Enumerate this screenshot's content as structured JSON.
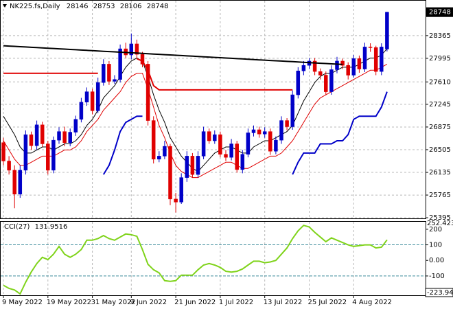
{
  "chart_data": [
    {
      "type": "candlestick",
      "title": "NK225.fs,Daily",
      "categories": [
        "9 May 2022",
        null,
        null,
        null,
        null,
        null,
        null,
        null,
        "19 May 2022",
        null,
        null,
        null,
        null,
        null,
        null,
        null,
        "31 May 2022",
        null,
        null,
        null,
        null,
        null,
        null,
        "9 Jun 2022",
        null,
        null,
        null,
        null,
        null,
        null,
        null,
        "21 Jun 2022",
        null,
        null,
        null,
        null,
        null,
        null,
        null,
        "1 Jul 2022",
        null,
        null,
        null,
        null,
        null,
        null,
        null,
        "13 Jul 2022",
        null,
        null,
        null,
        null,
        null,
        null,
        null,
        "25 Jul 2022",
        null,
        null,
        null,
        null,
        null,
        null,
        null,
        "4 Aug 2022",
        null,
        null,
        null,
        null,
        null,
        null
      ],
      "open": [
        26620,
        26320,
        26170,
        25780,
        26170,
        26750,
        26570,
        26910,
        26600,
        26170,
        26660,
        26800,
        26620,
        26790,
        27000,
        27280,
        27450,
        27140,
        27600,
        27900,
        27620,
        27650,
        28150,
        28050,
        28230,
        28060,
        27900,
        26980,
        26350,
        26400,
        26560,
        25700,
        25650,
        26050,
        26400,
        26100,
        26400,
        26800,
        26650,
        26750,
        26430,
        26380,
        26600,
        26180,
        26430,
        26780,
        26830,
        26760,
        26800,
        26480,
        26660,
        26980,
        26880,
        27400,
        27790,
        27880,
        27950,
        27780,
        27720,
        27450,
        27810,
        27950,
        27880,
        27720,
        27990,
        27820,
        28180,
        28170,
        27780,
        28146
      ],
      "high": [
        26700,
        26400,
        26250,
        26250,
        26820,
        26800,
        26980,
        26960,
        26650,
        26720,
        26870,
        26880,
        26850,
        27060,
        27350,
        27520,
        27500,
        27680,
        27980,
        27950,
        27720,
        28220,
        28250,
        28400,
        28300,
        28100,
        27950,
        27050,
        26480,
        26650,
        26600,
        25800,
        26120,
        26480,
        26450,
        26480,
        26880,
        26850,
        26820,
        26800,
        26500,
        26680,
        26650,
        26500,
        26850,
        26900,
        26880,
        26870,
        26850,
        26720,
        27050,
        27020,
        27470,
        27850,
        27950,
        28000,
        28000,
        27830,
        27780,
        27880,
        28020,
        27990,
        27930,
        28050,
        28040,
        28250,
        28240,
        28200,
        28240,
        28753
      ],
      "low": [
        26250,
        26100,
        25550,
        25720,
        26100,
        26500,
        26500,
        26550,
        26100,
        26120,
        26600,
        26560,
        26560,
        26730,
        26950,
        27220,
        27080,
        27100,
        27550,
        27560,
        27580,
        27600,
        28000,
        27980,
        28000,
        27850,
        26900,
        26280,
        26300,
        26350,
        25600,
        25480,
        25620,
        25980,
        26050,
        26050,
        26350,
        26600,
        26600,
        26380,
        26320,
        26330,
        26130,
        26120,
        26380,
        26720,
        26700,
        26700,
        26420,
        26430,
        26600,
        26820,
        26830,
        27340,
        27720,
        27820,
        27720,
        27650,
        27400,
        27400,
        27750,
        27820,
        27650,
        27680,
        27760,
        27770,
        28100,
        27720,
        27720,
        28106
      ],
      "close": [
        26320,
        26170,
        25780,
        26170,
        26750,
        26570,
        26910,
        26600,
        26170,
        26660,
        26800,
        26620,
        26790,
        27000,
        27280,
        27450,
        27140,
        27600,
        27900,
        27620,
        27650,
        28150,
        28050,
        28230,
        28060,
        27900,
        26980,
        26350,
        26400,
        26560,
        25700,
        25650,
        26050,
        26400,
        26100,
        26400,
        26800,
        26650,
        26750,
        26430,
        26380,
        26600,
        26180,
        26430,
        26780,
        26830,
        26760,
        26800,
        26480,
        26660,
        26980,
        26880,
        27400,
        27790,
        27880,
        27950,
        27780,
        27720,
        27450,
        27810,
        27950,
        27880,
        27720,
        27990,
        27820,
        28180,
        28170,
        27780,
        28180,
        28748
      ],
      "up_color": "#0000c8",
      "down_color": "#e00000",
      "lines": [
        {
          "color": "#000000",
          "width": 2,
          "values": [
            28200,
            28195,
            28190,
            28185,
            28180,
            28175,
            28170,
            28165,
            28160,
            28155,
            28150,
            28145,
            28140,
            28135,
            28130,
            28125,
            28120,
            28115,
            28110,
            28105,
            28100,
            28095,
            28090,
            28085,
            28080,
            28075,
            28070,
            28065,
            28060,
            28055,
            28050,
            28045,
            28040,
            28035,
            28030,
            28025,
            28020,
            28015,
            28010,
            28005,
            28000,
            27995,
            27990,
            27985,
            27980,
            27975,
            27970,
            27965,
            27960,
            27955,
            27950,
            27945,
            27940,
            27935,
            27930,
            27925,
            27920,
            27915,
            27910,
            27905,
            27900,
            27895,
            null,
            null,
            null,
            null,
            null,
            null,
            null,
            null
          ]
        },
        {
          "color": "#000000",
          "width": 1,
          "values": [
            27050,
            26900,
            26750,
            26550,
            26450,
            26450,
            26500,
            26550,
            26550,
            26500,
            26550,
            26600,
            26600,
            26650,
            26750,
            26900,
            27000,
            27150,
            27350,
            27450,
            27550,
            27700,
            27850,
            27950,
            28000,
            27950,
            27700,
            27400,
            27150,
            26950,
            26700,
            26550,
            26400,
            26300,
            26200,
            26150,
            26250,
            26350,
            26450,
            26500,
            26550,
            26550,
            26500,
            26450,
            26450,
            26550,
            26600,
            26650,
            26650,
            26700,
            26750,
            26800,
            26900,
            27100,
            27300,
            27450,
            27600,
            27700,
            27750,
            27750,
            27800,
            27850,
            27850,
            27850,
            27900,
            27950,
            28000,
            28000,
            28050,
            28150
          ]
        },
        {
          "color": "#e00000",
          "width": 1,
          "values": [
            26650,
            26500,
            26350,
            26250,
            26250,
            26300,
            26350,
            26400,
            26400,
            26400,
            26450,
            26500,
            26500,
            26550,
            26650,
            26800,
            26900,
            27000,
            27150,
            27250,
            27350,
            27450,
            27600,
            27700,
            27750,
            27750,
            27500,
            27200,
            26900,
            26700,
            26450,
            26250,
            26150,
            26100,
            26050,
            26050,
            26100,
            26150,
            26200,
            26250,
            26300,
            26300,
            26250,
            26200,
            26200,
            26250,
            26300,
            26350,
            26400,
            26400,
            26450,
            26550,
            26650,
            26800,
            26950,
            27100,
            27250,
            27350,
            27400,
            27450,
            27500,
            27550,
            27600,
            27650,
            27700,
            27750,
            27800,
            27800,
            27850,
            27900
          ]
        },
        {
          "color": "#0000c8",
          "width": 2,
          "values": [
            null,
            null,
            null,
            null,
            null,
            null,
            null,
            null,
            null,
            null,
            null,
            null,
            null,
            null,
            null,
            null,
            null,
            null,
            26100,
            26250,
            26500,
            26800,
            26950,
            27000,
            27050,
            27050,
            null,
            null,
            null,
            null,
            null,
            null,
            null,
            null,
            null,
            null,
            null,
            null,
            null,
            null,
            null,
            null,
            null,
            null,
            null,
            null,
            null,
            null,
            null,
            null,
            null,
            null,
            26100,
            26300,
            26450,
            26450,
            26450,
            26600,
            26600,
            26600,
            26650,
            26650,
            26750,
            27000,
            27050,
            27050,
            27050,
            27050,
            27200,
            27450
          ]
        },
        {
          "color": "#e00000",
          "width": 2,
          "values": [
            27750,
            27750,
            27750,
            27750,
            27750,
            27750,
            27750,
            27750,
            27750,
            27750,
            27750,
            27750,
            27750,
            27750,
            27750,
            27750,
            27750,
            27750,
            null,
            null,
            null,
            null,
            null,
            null,
            27990,
            27950,
            27800,
            27550,
            27480,
            27480,
            27480,
            27480,
            27480,
            27480,
            27480,
            27480,
            27480,
            27480,
            27480,
            27480,
            27480,
            27480,
            27480,
            27480,
            27480,
            27480,
            27480,
            27480,
            27480,
            27480,
            27480,
            27480,
            27480,
            null,
            null,
            null,
            null,
            null,
            null,
            null,
            null,
            null,
            null,
            null,
            null,
            null,
            null,
            null,
            null,
            null
          ]
        }
      ],
      "ylim": [
        25385,
        28946
      ],
      "yticks": [
        28365,
        27995,
        27610,
        27245,
        26875,
        26505,
        26135,
        25765,
        25395
      ],
      "grid": true
    },
    {
      "type": "line",
      "title": "CCI(27)",
      "series": [
        {
          "color": "#7fd31a",
          "values": [
            -160,
            -180,
            -190,
            -215,
            -140,
            -75,
            -20,
            20,
            5,
            40,
            90,
            40,
            20,
            40,
            70,
            130,
            130,
            140,
            160,
            140,
            130,
            150,
            170,
            165,
            155,
            70,
            -25,
            -60,
            -80,
            -130,
            -135,
            -130,
            -95,
            -95,
            -95,
            -60,
            -30,
            -20,
            -30,
            -45,
            -70,
            -75,
            -70,
            -55,
            -30,
            -5,
            -5,
            -15,
            -10,
            0,
            40,
            80,
            140,
            190,
            225,
            215,
            180,
            150,
            120,
            145,
            130,
            115,
            100,
            90,
            95,
            100,
            100,
            80,
            85,
            131.9516
          ]
        }
      ],
      "ylim": [
        -223.949,
        252.4231
      ],
      "yticks": [
        200,
        100,
        {
          "value": 0,
          "label": "0.00"
        },
        -100
      ],
      "levels": [
        100,
        -100
      ],
      "level_color": "#3b8a9a",
      "grid": true
    }
  ]
}
